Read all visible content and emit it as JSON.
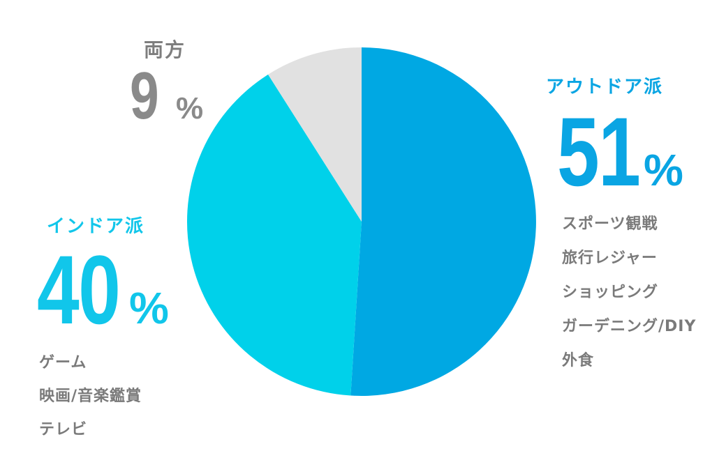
{
  "chart_data": {
    "type": "pie",
    "start": "12 o'clock",
    "direction": "clockwise",
    "categories": [
      "アウトドア派",
      "インドア派",
      "両方"
    ],
    "values": [
      51,
      40,
      9
    ],
    "unit": "%",
    "colors": [
      "#00a8e3",
      "#00d1ea",
      "#e1e1e1"
    ],
    "slices": [
      {
        "label": "アウトドア派",
        "value": "51",
        "unit": "%",
        "color": "#00a8e3",
        "examples": [
          "スポーツ観戦",
          "旅行レジャー",
          "ショッピング",
          "ガーデニング/DIY",
          "外食"
        ]
      },
      {
        "label": "インドア派",
        "value": "40",
        "unit": "%",
        "color": "#00d1ea",
        "examples": [
          "ゲーム",
          "映画/音楽鑑賞",
          "テレビ"
        ]
      },
      {
        "label": "両方",
        "value": "9",
        "unit": "%",
        "color": "#e1e1e1",
        "examples": []
      }
    ]
  }
}
